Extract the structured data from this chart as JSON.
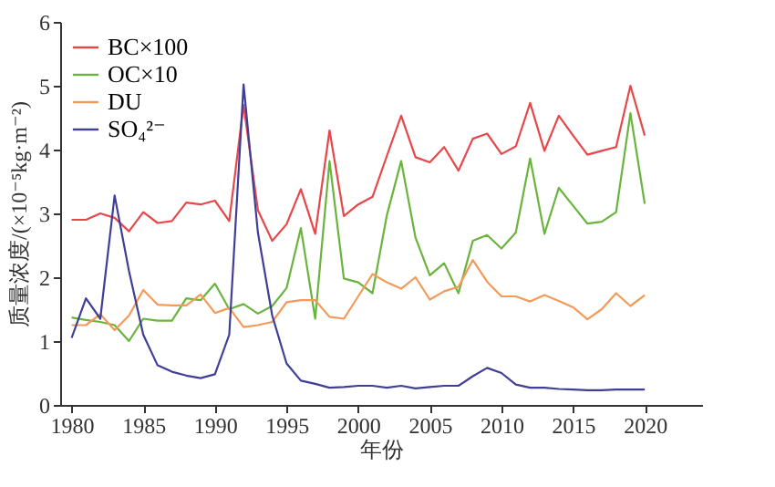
{
  "chart_data": {
    "type": "line",
    "xlabel": "年份",
    "ylabel": "质量浓度/(×10⁻⁵kg·m⁻²)",
    "x": [
      1980,
      1981,
      1982,
      1983,
      1984,
      1985,
      1986,
      1987,
      1988,
      1989,
      1990,
      1991,
      1992,
      1993,
      1994,
      1995,
      1996,
      1997,
      1998,
      1999,
      2000,
      2001,
      2002,
      2003,
      2004,
      2005,
      2006,
      2007,
      2008,
      2009,
      2010,
      2011,
      2012,
      2013,
      2014,
      2015,
      2016,
      2017,
      2018,
      2019,
      2020
    ],
    "xlim": [
      1979.2,
      2024
    ],
    "xticks": [
      1980,
      1985,
      1990,
      1995,
      2000,
      2005,
      2010,
      2015,
      2020
    ],
    "ylim": [
      0,
      6
    ],
    "yticks": [
      0,
      1,
      2,
      3,
      4,
      5,
      6
    ],
    "grid": false,
    "legend": "top left",
    "line_style": "solid",
    "marker": "none",
    "series": [
      {
        "name": "BC×100",
        "color": "#e8474a",
        "values": [
          2.9,
          2.9,
          3.0,
          2.93,
          2.72,
          3.02,
          2.85,
          2.88,
          3.17,
          3.14,
          3.2,
          2.88,
          4.7,
          3.05,
          2.57,
          2.83,
          3.38,
          2.68,
          4.3,
          2.96,
          3.14,
          3.26,
          3.9,
          4.53,
          3.88,
          3.8,
          4.04,
          3.67,
          4.17,
          4.25,
          3.93,
          4.05,
          4.73,
          3.98,
          4.53,
          4.22,
          3.92,
          3.98,
          4.04,
          5.0,
          4.22
        ]
      },
      {
        "name": "OC×10",
        "color": "#6ab43e",
        "values": [
          1.37,
          1.33,
          1.3,
          1.25,
          1.0,
          1.35,
          1.32,
          1.32,
          1.67,
          1.64,
          1.9,
          1.5,
          1.58,
          1.43,
          1.55,
          1.83,
          2.77,
          1.35,
          3.82,
          1.98,
          1.92,
          1.75,
          2.97,
          3.82,
          2.62,
          2.03,
          2.22,
          1.75,
          2.57,
          2.66,
          2.45,
          2.7,
          3.86,
          2.68,
          3.4,
          3.12,
          2.84,
          2.87,
          3.02,
          4.57,
          3.15
        ]
      },
      {
        "name": "DU",
        "color": "#f39a5a",
        "values": [
          1.25,
          1.25,
          1.42,
          1.17,
          1.4,
          1.8,
          1.57,
          1.56,
          1.56,
          1.73,
          1.44,
          1.52,
          1.22,
          1.25,
          1.3,
          1.61,
          1.64,
          1.64,
          1.38,
          1.35,
          1.7,
          2.05,
          1.92,
          1.82,
          2.0,
          1.65,
          1.78,
          1.85,
          2.27,
          1.93,
          1.7,
          1.7,
          1.62,
          1.72,
          1.63,
          1.53,
          1.34,
          1.5,
          1.75,
          1.55,
          1.72
        ]
      },
      {
        "name": "SO₄²⁻",
        "color": "#3f3f97",
        "values": [
          1.05,
          1.67,
          1.35,
          3.28,
          2.1,
          1.1,
          0.62,
          0.52,
          0.46,
          0.42,
          0.48,
          1.1,
          5.02,
          2.7,
          1.4,
          0.65,
          0.38,
          0.33,
          0.27,
          0.28,
          0.3,
          0.3,
          0.27,
          0.3,
          0.26,
          0.28,
          0.3,
          0.3,
          0.45,
          0.58,
          0.5,
          0.32,
          0.27,
          0.27,
          0.25,
          0.24,
          0.23,
          0.23,
          0.24,
          0.24,
          0.24
        ]
      }
    ]
  }
}
